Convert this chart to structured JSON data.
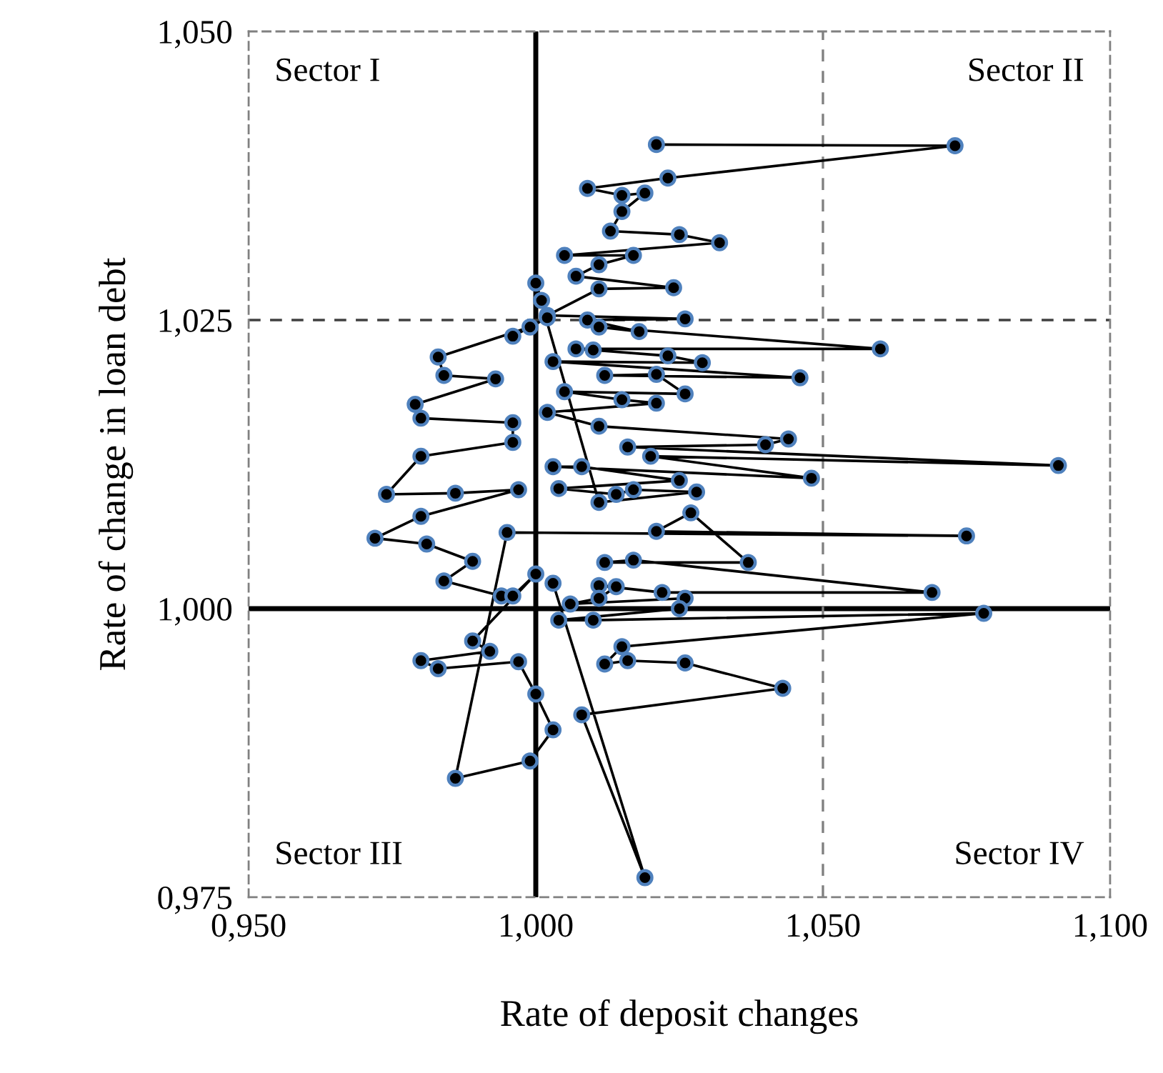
{
  "chart_data": {
    "type": "line",
    "xlabel": "Rate of deposit changes",
    "ylabel": "Rate of change in loan debt",
    "xlim": [
      0.95,
      1.1
    ],
    "ylim": [
      0.975,
      1.05
    ],
    "xticks": [
      {
        "value": 0.95,
        "label": "0,950"
      },
      {
        "value": 1.0,
        "label": "1,000"
      },
      {
        "value": 1.05,
        "label": "1,050"
      },
      {
        "value": 1.1,
        "label": "1,100"
      }
    ],
    "yticks": [
      {
        "value": 0.975,
        "label": "0,975"
      },
      {
        "value": 1.0,
        "label": "1,000"
      },
      {
        "value": 1.025,
        "label": "1,025"
      },
      {
        "value": 1.05,
        "label": "1,050"
      }
    ],
    "marker": "circle",
    "line_style": "solid",
    "grid": false,
    "legend": false,
    "annotations": [
      "Sector I",
      "Sector II",
      "Sector III",
      "Sector IV"
    ],
    "ref_lines": [
      {
        "axis": "x",
        "value": 1.0,
        "color": "#000000",
        "line_style": "solid"
      },
      {
        "axis": "y",
        "value": 1.0,
        "color": "#000000",
        "line_style": "solid"
      },
      {
        "axis": "x",
        "value": 1.05,
        "color": "#808080",
        "line_style": "dashed"
      },
      {
        "axis": "y",
        "value": 1.025,
        "color": "#404040",
        "line_style": "dashed"
      }
    ],
    "series": [
      {
        "color": "#000000",
        "x": [
          1.021,
          1.073,
          1.023,
          1.009,
          1.015,
          1.019,
          1.015,
          1.013,
          1.025,
          1.032,
          1.005,
          1.017,
          1.011,
          1.007,
          1.024,
          1.011,
          1.002,
          1.026,
          1.009,
          1.018,
          1.011,
          1.06,
          1.007,
          1.01,
          1.023,
          1.029,
          1.003,
          1.046,
          1.012,
          1.021,
          1.026,
          1.005,
          1.015,
          1.021,
          1.002,
          1.011,
          1.044,
          1.04,
          1.016,
          1.091,
          1.02,
          1.048,
          1.003,
          1.008,
          1.025,
          1.004,
          1.014,
          1.017,
          1.028,
          1.011,
          1.0,
          1.001,
          1.002,
          0.996,
          0.999,
          0.983,
          0.984,
          0.993,
          0.979,
          0.98,
          0.996,
          0.996,
          0.98,
          0.974,
          0.986,
          0.997,
          0.98,
          0.972,
          0.981,
          0.989,
          0.984,
          0.994,
          0.996,
          1.0,
          0.989,
          0.992,
          0.98,
          0.983,
          0.997,
          1.0,
          1.003,
          0.999,
          0.986,
          0.995,
          1.075,
          1.021,
          1.027,
          1.037,
          1.012,
          1.017,
          1.069,
          1.022,
          1.011,
          1.014,
          1.011,
          1.006,
          1.026,
          1.025,
          1.004,
          1.01,
          1.078,
          1.015,
          1.012,
          1.016,
          1.026,
          1.043,
          1.008,
          1.019,
          1.003
        ],
        "values": [
          1.0402,
          1.0401,
          1.0373,
          1.0364,
          1.0358,
          1.036,
          1.0344,
          1.0327,
          1.0324,
          1.0317,
          1.0306,
          1.0306,
          1.0298,
          1.0288,
          1.0278,
          1.0277,
          1.0254,
          1.0251,
          1.025,
          1.024,
          1.0244,
          1.0225,
          1.0225,
          1.0224,
          1.0219,
          1.0213,
          1.0214,
          1.02,
          1.0202,
          1.0203,
          1.0186,
          1.0188,
          1.0181,
          1.0178,
          1.017,
          1.0158,
          1.0147,
          1.0142,
          1.014,
          1.0124,
          1.0132,
          1.0113,
          1.0123,
          1.0123,
          1.0111,
          1.0104,
          1.0099,
          1.0103,
          1.0101,
          1.0092,
          1.0282,
          1.0267,
          1.0252,
          1.0236,
          1.0244,
          1.0218,
          1.0202,
          1.0199,
          1.0177,
          1.0165,
          1.0161,
          1.0144,
          1.0132,
          1.0099,
          1.01,
          1.0103,
          1.008,
          1.0061,
          1.0056,
          1.0041,
          1.0024,
          1.0011,
          1.0011,
          1.003,
          0.9972,
          0.9963,
          0.9955,
          0.9948,
          0.9954,
          0.9926,
          0.9895,
          0.9868,
          0.9853,
          1.0066,
          1.0063,
          1.0067,
          1.0083,
          1.004,
          1.004,
          1.0042,
          1.0014,
          1.0014,
          1.002,
          1.0019,
          1.0009,
          1.0004,
          1.0009,
          1.0,
          0.999,
          0.999,
          0.9996,
          0.9967,
          0.9952,
          0.9955,
          0.9953,
          0.9931,
          0.9908,
          0.9767,
          1.0022
        ]
      }
    ]
  }
}
